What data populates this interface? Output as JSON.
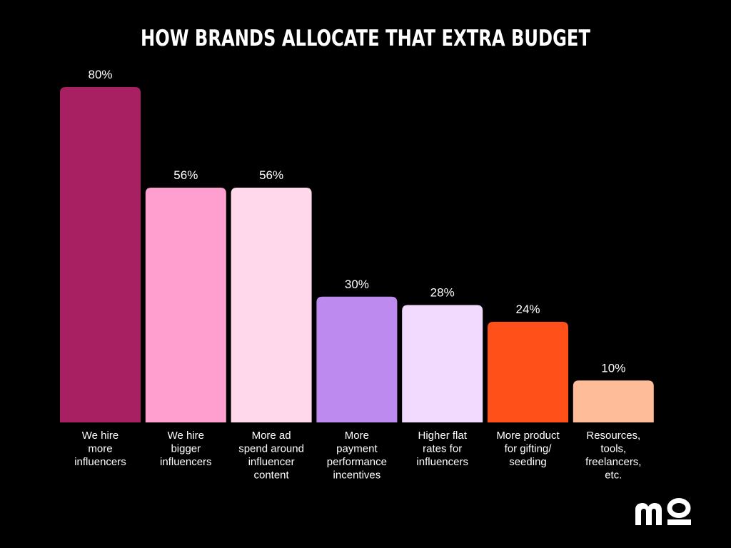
{
  "chart_data": {
    "type": "bar",
    "title": "HOW BRANDS ALLOCATE THAT EXTRA BUDGET",
    "categories": [
      [
        "We hire",
        "more",
        "influencers"
      ],
      [
        "We hire",
        "bigger",
        "influencers"
      ],
      [
        "More ad",
        "spend around",
        "influencer",
        "content"
      ],
      [
        "More",
        "payment",
        "performance",
        "incentives"
      ],
      [
        "Higher flat",
        "rates for",
        "influencers"
      ],
      [
        "More product",
        "for gifting/",
        "seeding"
      ],
      [
        "Resources,",
        "tools,",
        "freelancers,",
        "etc."
      ]
    ],
    "values": [
      80,
      56,
      56,
      30,
      28,
      24,
      10
    ],
    "value_labels": [
      "80%",
      "56%",
      "56%",
      "30%",
      "28%",
      "24%",
      "10%"
    ],
    "colors": [
      "#A81F62",
      "#FE9FCF",
      "#FFD9EB",
      "#BD8BEF",
      "#F1DAFE",
      "#FE5018",
      "#FEBC98"
    ],
    "ylim": [
      0,
      100
    ],
    "grid": false,
    "legend": "none",
    "xlabel": "",
    "ylabel": ""
  },
  "logo": {
    "name": "mo-logo-icon",
    "color": "#ffffff"
  }
}
